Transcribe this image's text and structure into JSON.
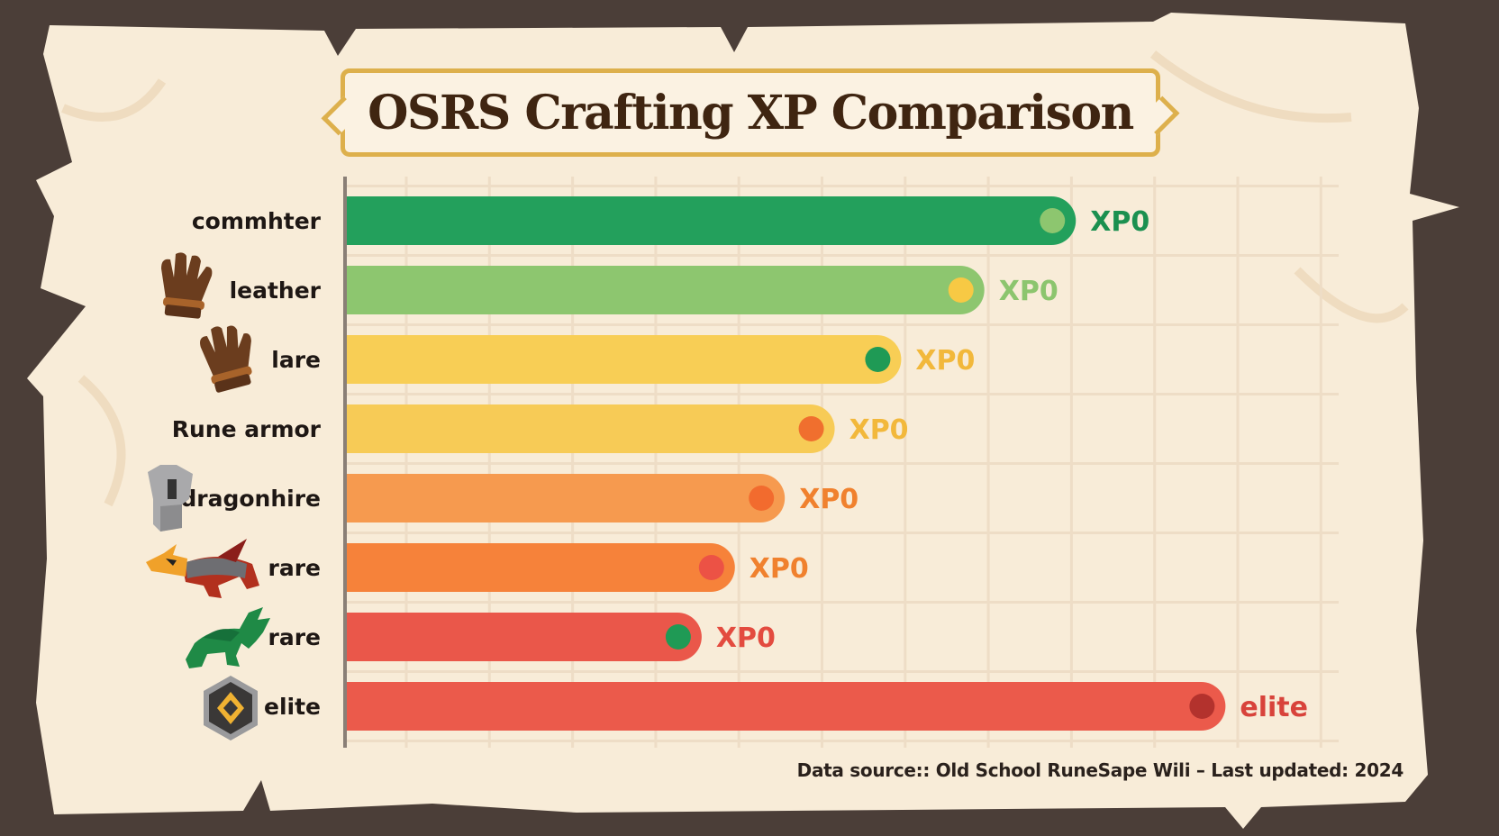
{
  "title": "OSRS Crafting XP Comparison",
  "footer": "Data source:: Old School RuneSape Wili – Last updated: 2024",
  "chart_data": {
    "type": "bar",
    "orientation": "horizontal",
    "title": "OSRS Crafting XP Comparison",
    "xlabel": "",
    "ylabel": "",
    "xlim": [
      0,
      11.9
    ],
    "grid": true,
    "categories": [
      "commhter",
      "leather",
      "lare",
      "Rune armor",
      "dragonhire",
      "rare",
      "rare",
      "elite"
    ],
    "values": [
      8.8,
      7.7,
      6.7,
      5.9,
      5.3,
      4.7,
      4.3,
      10.6
    ],
    "data_labels": [
      "XP0",
      "XP0",
      "XP0",
      "XP0",
      "XP0",
      "XP0",
      "XP0",
      "elite"
    ],
    "icons": [
      "",
      "glove-icon",
      "glove-icon",
      "",
      "helmet-icon",
      "red-dragon-icon",
      "green-dragon-icon",
      "elite-hexagon-icon"
    ],
    "bar_colors": [
      "#23a05c",
      "#8dc66f",
      "#f8ce55",
      "#f7cb56",
      "#f69a4f",
      "#f6823a",
      "#ea574a",
      "#eb5a4b"
    ],
    "dot_colors": [
      "#8dc66f",
      "#f7c944",
      "#1f9a55",
      "#f06f2e",
      "#f26b2e",
      "#ec5245",
      "#1f9a55",
      "#b3322d"
    ],
    "label_colors": [
      "#1b9050",
      "#8cc56e",
      "#f2b83b",
      "#f2b83b",
      "#f0812e",
      "#f0812e",
      "#e34b3f",
      "#d8433b"
    ]
  }
}
